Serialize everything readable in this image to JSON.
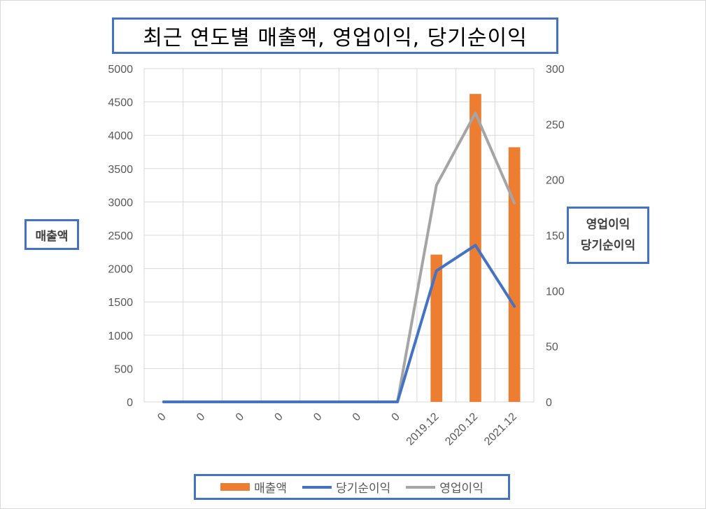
{
  "chart_data": {
    "type": "bar",
    "title": "최근 연도별 매출액, 영업이익, 당기순이익",
    "categories": [
      "0",
      "0",
      "0",
      "0",
      "0",
      "0",
      "0",
      "2019.12",
      "2020.12",
      "2021.12"
    ],
    "ylabel": "매출액",
    "ylabel_right": [
      "영업이익",
      "당기순이익"
    ],
    "ylim": [
      0,
      5000
    ],
    "ylim_right": [
      0,
      300
    ],
    "yticks": [
      "0",
      "500",
      "1000",
      "1500",
      "2000",
      "2500",
      "3000",
      "3500",
      "4000",
      "4500",
      "5000"
    ],
    "yticks_right": [
      "0",
      "50",
      "100",
      "150",
      "200",
      "250",
      "300"
    ],
    "grid": true,
    "legend_position": "bottom",
    "series": [
      {
        "name": "매출액",
        "type": "bar",
        "axis": "left",
        "color": "#ed7d31",
        "values": [
          0,
          0,
          0,
          0,
          0,
          0,
          0,
          2210,
          4620,
          3820
        ]
      },
      {
        "name": "당기순이익",
        "type": "line",
        "axis": "right",
        "color": "#4472c4",
        "values": [
          0,
          0,
          0,
          0,
          0,
          0,
          0,
          118,
          141,
          86
        ]
      },
      {
        "name": "영업이익",
        "type": "line",
        "axis": "right",
        "color": "#a5a5a5",
        "values": [
          0,
          0,
          0,
          0,
          0,
          0,
          0,
          195,
          260,
          179
        ]
      }
    ]
  }
}
